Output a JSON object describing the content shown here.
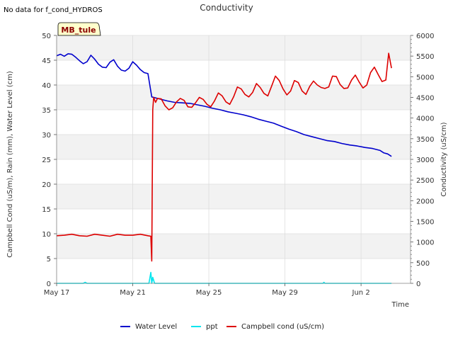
{
  "header": {
    "no_data_text": "No data for f_cond_HYDROS"
  },
  "badge": {
    "label": "MB_tule",
    "fill": "#ffffcc",
    "text_color": "#8b0000"
  },
  "chart_data": {
    "type": "line",
    "title": "Conductivity",
    "xlabel": "Time",
    "ylabel": "Campbell Cond (uS/m), Rain (mm), Water Level (cm)",
    "y2label": "Conductivity (uS/cm)",
    "xlim": [
      0,
      18.6
    ],
    "ylim": [
      0,
      50
    ],
    "y2lim": [
      0,
      6000
    ],
    "x_unit": "days since May 17",
    "x_ticks": [
      {
        "value": 0,
        "label": "May 17"
      },
      {
        "value": 4,
        "label": "May 21"
      },
      {
        "value": 8,
        "label": "May 25"
      },
      {
        "value": 12,
        "label": "May 29"
      },
      {
        "value": 16,
        "label": "Jun 2"
      }
    ],
    "y_ticks": [
      0,
      5,
      10,
      15,
      20,
      25,
      30,
      35,
      40,
      45,
      50
    ],
    "y2_ticks": [
      0,
      500,
      1000,
      1500,
      2000,
      2500,
      3000,
      3500,
      4000,
      4500,
      5000,
      5500,
      6000
    ],
    "grid": true,
    "legend_position": "bottom-center",
    "series": [
      {
        "name": "Water Level",
        "color": "#0000cc",
        "axis": "left",
        "x": [
          0.0,
          0.2,
          0.4,
          0.6,
          0.8,
          1.0,
          1.2,
          1.4,
          1.6,
          1.8,
          2.0,
          2.2,
          2.4,
          2.6,
          2.8,
          3.0,
          3.2,
          3.4,
          3.6,
          3.8,
          4.0,
          4.2,
          4.4,
          4.6,
          4.8,
          5.0,
          5.4,
          5.8,
          6.2,
          6.6,
          7.0,
          7.4,
          7.8,
          8.2,
          8.6,
          9.0,
          9.4,
          9.8,
          10.2,
          10.6,
          11.0,
          11.4,
          11.8,
          12.2,
          12.6,
          13.0,
          13.4,
          13.8,
          14.2,
          14.6,
          15.0,
          15.4,
          15.8,
          16.2,
          16.6,
          17.0,
          17.2,
          17.4,
          17.6
        ],
        "values": [
          45.9,
          46.2,
          45.8,
          46.3,
          46.2,
          45.6,
          44.9,
          44.3,
          44.7,
          46.0,
          45.2,
          44.2,
          43.6,
          43.5,
          44.6,
          45.1,
          43.8,
          43.0,
          42.8,
          43.4,
          44.7,
          44.0,
          43.1,
          42.5,
          42.3,
          37.6,
          37.2,
          36.8,
          36.5,
          36.4,
          36.3,
          36.0,
          35.7,
          35.3,
          35.0,
          34.6,
          34.3,
          34.0,
          33.6,
          33.1,
          32.7,
          32.3,
          31.7,
          31.1,
          30.6,
          30.0,
          29.6,
          29.2,
          28.8,
          28.6,
          28.2,
          27.9,
          27.7,
          27.4,
          27.2,
          26.8,
          26.3,
          26.1,
          25.6
        ]
      },
      {
        "name": "ppt",
        "color": "#00e5ee",
        "axis": "left",
        "x": [
          0.0,
          1.4,
          1.5,
          1.6,
          4.85,
          4.95,
          5.0,
          5.05,
          5.15,
          14.0,
          14.05,
          14.1,
          17.6
        ],
        "values": [
          0.0,
          0.0,
          0.2,
          0.0,
          0.0,
          2.2,
          0.0,
          1.2,
          0.0,
          0.0,
          0.2,
          0.0,
          0.0
        ]
      },
      {
        "name": "Campbell cond (uS/cm)",
        "color": "#dd0000",
        "axis": "left",
        "x": [
          0.0,
          0.4,
          0.8,
          1.2,
          1.6,
          2.0,
          2.4,
          2.8,
          3.2,
          3.6,
          4.0,
          4.4,
          4.8,
          4.95,
          5.0,
          5.05,
          5.1,
          5.2,
          5.3,
          5.5,
          5.7,
          5.9,
          6.1,
          6.3,
          6.5,
          6.7,
          6.9,
          7.1,
          7.3,
          7.5,
          7.7,
          7.9,
          8.1,
          8.3,
          8.5,
          8.7,
          8.9,
          9.1,
          9.3,
          9.5,
          9.7,
          9.9,
          10.1,
          10.3,
          10.5,
          10.7,
          10.9,
          11.1,
          11.3,
          11.5,
          11.7,
          11.9,
          12.1,
          12.3,
          12.5,
          12.7,
          12.9,
          13.1,
          13.3,
          13.5,
          13.7,
          13.9,
          14.1,
          14.3,
          14.5,
          14.7,
          14.9,
          15.1,
          15.3,
          15.5,
          15.7,
          15.9,
          16.1,
          16.3,
          16.5,
          16.7,
          16.9,
          17.1,
          17.3,
          17.45,
          17.6
        ],
        "values": [
          9.6,
          9.7,
          9.9,
          9.6,
          9.5,
          9.9,
          9.7,
          9.5,
          9.9,
          9.7,
          9.7,
          9.9,
          9.6,
          9.5,
          4.5,
          35.0,
          37.5,
          36.5,
          37.3,
          37.2,
          35.8,
          35.0,
          35.4,
          36.6,
          37.3,
          36.9,
          35.6,
          35.5,
          36.4,
          37.5,
          37.1,
          36.1,
          35.6,
          36.8,
          38.4,
          37.8,
          36.6,
          36.1,
          37.6,
          39.6,
          39.2,
          38.1,
          37.6,
          38.5,
          40.3,
          39.5,
          38.3,
          37.8,
          39.8,
          41.8,
          40.9,
          39.2,
          38.0,
          38.8,
          40.9,
          40.5,
          38.8,
          38.1,
          39.7,
          40.8,
          40.0,
          39.5,
          39.3,
          39.6,
          41.8,
          41.7,
          40.1,
          39.3,
          39.4,
          41.0,
          42.0,
          40.6,
          39.4,
          40.0,
          42.5,
          43.6,
          42.1,
          40.7,
          41.0,
          46.4,
          43.4
        ]
      }
    ]
  }
}
